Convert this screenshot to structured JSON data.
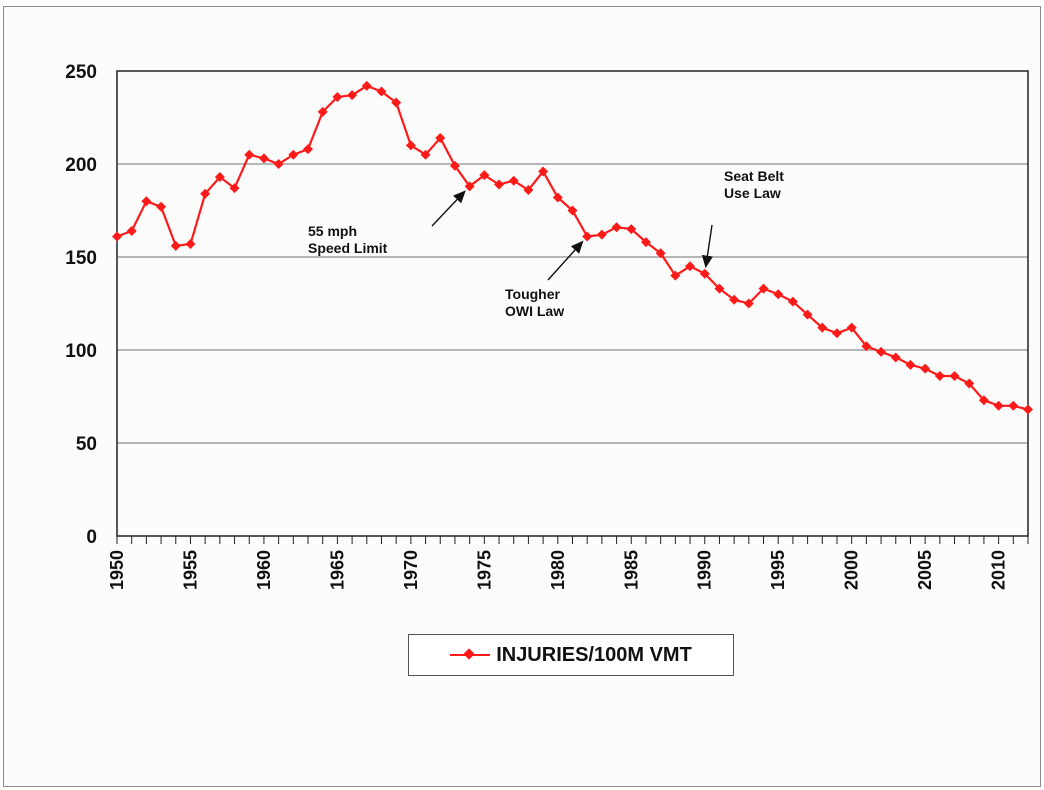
{
  "chart_data": {
    "type": "line",
    "title": "",
    "xlabel": "",
    "ylabel": "",
    "xlim": [
      1950,
      2012
    ],
    "ylim": [
      0,
      250
    ],
    "y_ticks": [
      "0",
      "50",
      "100",
      "150",
      "200",
      "250"
    ],
    "x_ticks": [
      "1950",
      "1955",
      "1960",
      "1965",
      "1970",
      "1975",
      "1980",
      "1985",
      "1990",
      "1995",
      "2000",
      "2005",
      "2010"
    ],
    "grid": true,
    "legend_position": "bottom-center",
    "series": [
      {
        "name": "INJURIES/100M VMT",
        "color": "#ff1a1a",
        "marker": "diamond",
        "x": [
          1950,
          1951,
          1952,
          1953,
          1954,
          1955,
          1956,
          1957,
          1958,
          1959,
          1960,
          1961,
          1962,
          1963,
          1964,
          1965,
          1966,
          1967,
          1968,
          1969,
          1970,
          1971,
          1972,
          1973,
          1974,
          1975,
          1976,
          1977,
          1978,
          1979,
          1980,
          1981,
          1982,
          1983,
          1984,
          1985,
          1986,
          1987,
          1988,
          1989,
          1990,
          1991,
          1992,
          1993,
          1994,
          1995,
          1996,
          1997,
          1998,
          1999,
          2000,
          2001,
          2002,
          2003,
          2004,
          2005,
          2006,
          2007,
          2008,
          2009,
          2010,
          2011,
          2012
        ],
        "values": [
          161,
          164,
          180,
          177,
          156,
          157,
          184,
          193,
          187,
          205,
          203,
          200,
          205,
          208,
          228,
          236,
          237,
          242,
          239,
          233,
          210,
          205,
          214,
          199,
          188,
          194,
          189,
          191,
          186,
          196,
          182,
          175,
          161,
          162,
          166,
          165,
          158,
          152,
          140,
          145,
          141,
          133,
          127,
          125,
          133,
          130,
          126,
          119,
          112,
          109,
          112,
          102,
          99,
          96,
          92,
          90,
          86,
          86,
          82,
          73,
          70,
          70,
          68
        ]
      }
    ],
    "annotations": [
      {
        "lines": [
          "55 mph",
          "Speed Limit"
        ],
        "points_to_year": 1974
      },
      {
        "lines": [
          "Tougher",
          "OWI Law"
        ],
        "points_to_year": 1982
      },
      {
        "lines": [
          "Seat Belt",
          "Use Law"
        ],
        "points_to_year": 1990
      }
    ]
  }
}
